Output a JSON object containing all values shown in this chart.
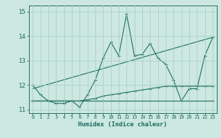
{
  "xlabel": "Humidex (Indice chaleur)",
  "background_color": "#cce8e0",
  "grid_color": "#aacfc8",
  "line_color": "#1a6b5e",
  "xlim": [
    -0.5,
    23.5
  ],
  "ylim": [
    10.85,
    15.25
  ],
  "yticks": [
    11,
    12,
    13,
    14,
    15
  ],
  "xticks": [
    0,
    1,
    2,
    3,
    4,
    5,
    6,
    7,
    8,
    9,
    10,
    11,
    12,
    13,
    14,
    15,
    16,
    17,
    18,
    19,
    20,
    21,
    22,
    23
  ],
  "series1_x": [
    0,
    1,
    2,
    3,
    4,
    5,
    6,
    7,
    8,
    9,
    10,
    11,
    12,
    13,
    14,
    15,
    16,
    17,
    18,
    19,
    20,
    21,
    22,
    23
  ],
  "series1_y": [
    12.0,
    11.6,
    11.35,
    11.25,
    11.25,
    11.35,
    11.1,
    11.6,
    12.2,
    13.1,
    13.75,
    13.2,
    14.9,
    13.2,
    13.25,
    13.7,
    13.1,
    12.85,
    12.2,
    11.35,
    11.85,
    11.85,
    13.2,
    13.95
  ],
  "series2_x": [
    0,
    1,
    2,
    3,
    4,
    5,
    6,
    7,
    8,
    9,
    10,
    11,
    12,
    13,
    14,
    15,
    16,
    17,
    18,
    19,
    20,
    21,
    22,
    23
  ],
  "series2_y": [
    11.35,
    11.35,
    11.35,
    11.35,
    11.35,
    11.35,
    11.35,
    11.4,
    11.45,
    11.55,
    11.6,
    11.65,
    11.7,
    11.75,
    11.8,
    11.85,
    11.9,
    11.95,
    11.95,
    11.95,
    11.95,
    11.95,
    11.95,
    11.95
  ],
  "series3_x": [
    0,
    23
  ],
  "series3_y": [
    11.85,
    13.95
  ],
  "series4_x": [
    0,
    1,
    2,
    3,
    4,
    5,
    6,
    7,
    8,
    9,
    10,
    11,
    12,
    13,
    14,
    15,
    16,
    17,
    18,
    19,
    20,
    21,
    22,
    23
  ],
  "series4_y": [
    11.35,
    11.35,
    11.35,
    11.35,
    11.35,
    11.35,
    11.35,
    11.35,
    11.35,
    11.35,
    11.35,
    11.35,
    11.35,
    11.35,
    11.35,
    11.35,
    11.35,
    11.35,
    11.35,
    11.35,
    11.35,
    11.35,
    11.35,
    11.35
  ]
}
